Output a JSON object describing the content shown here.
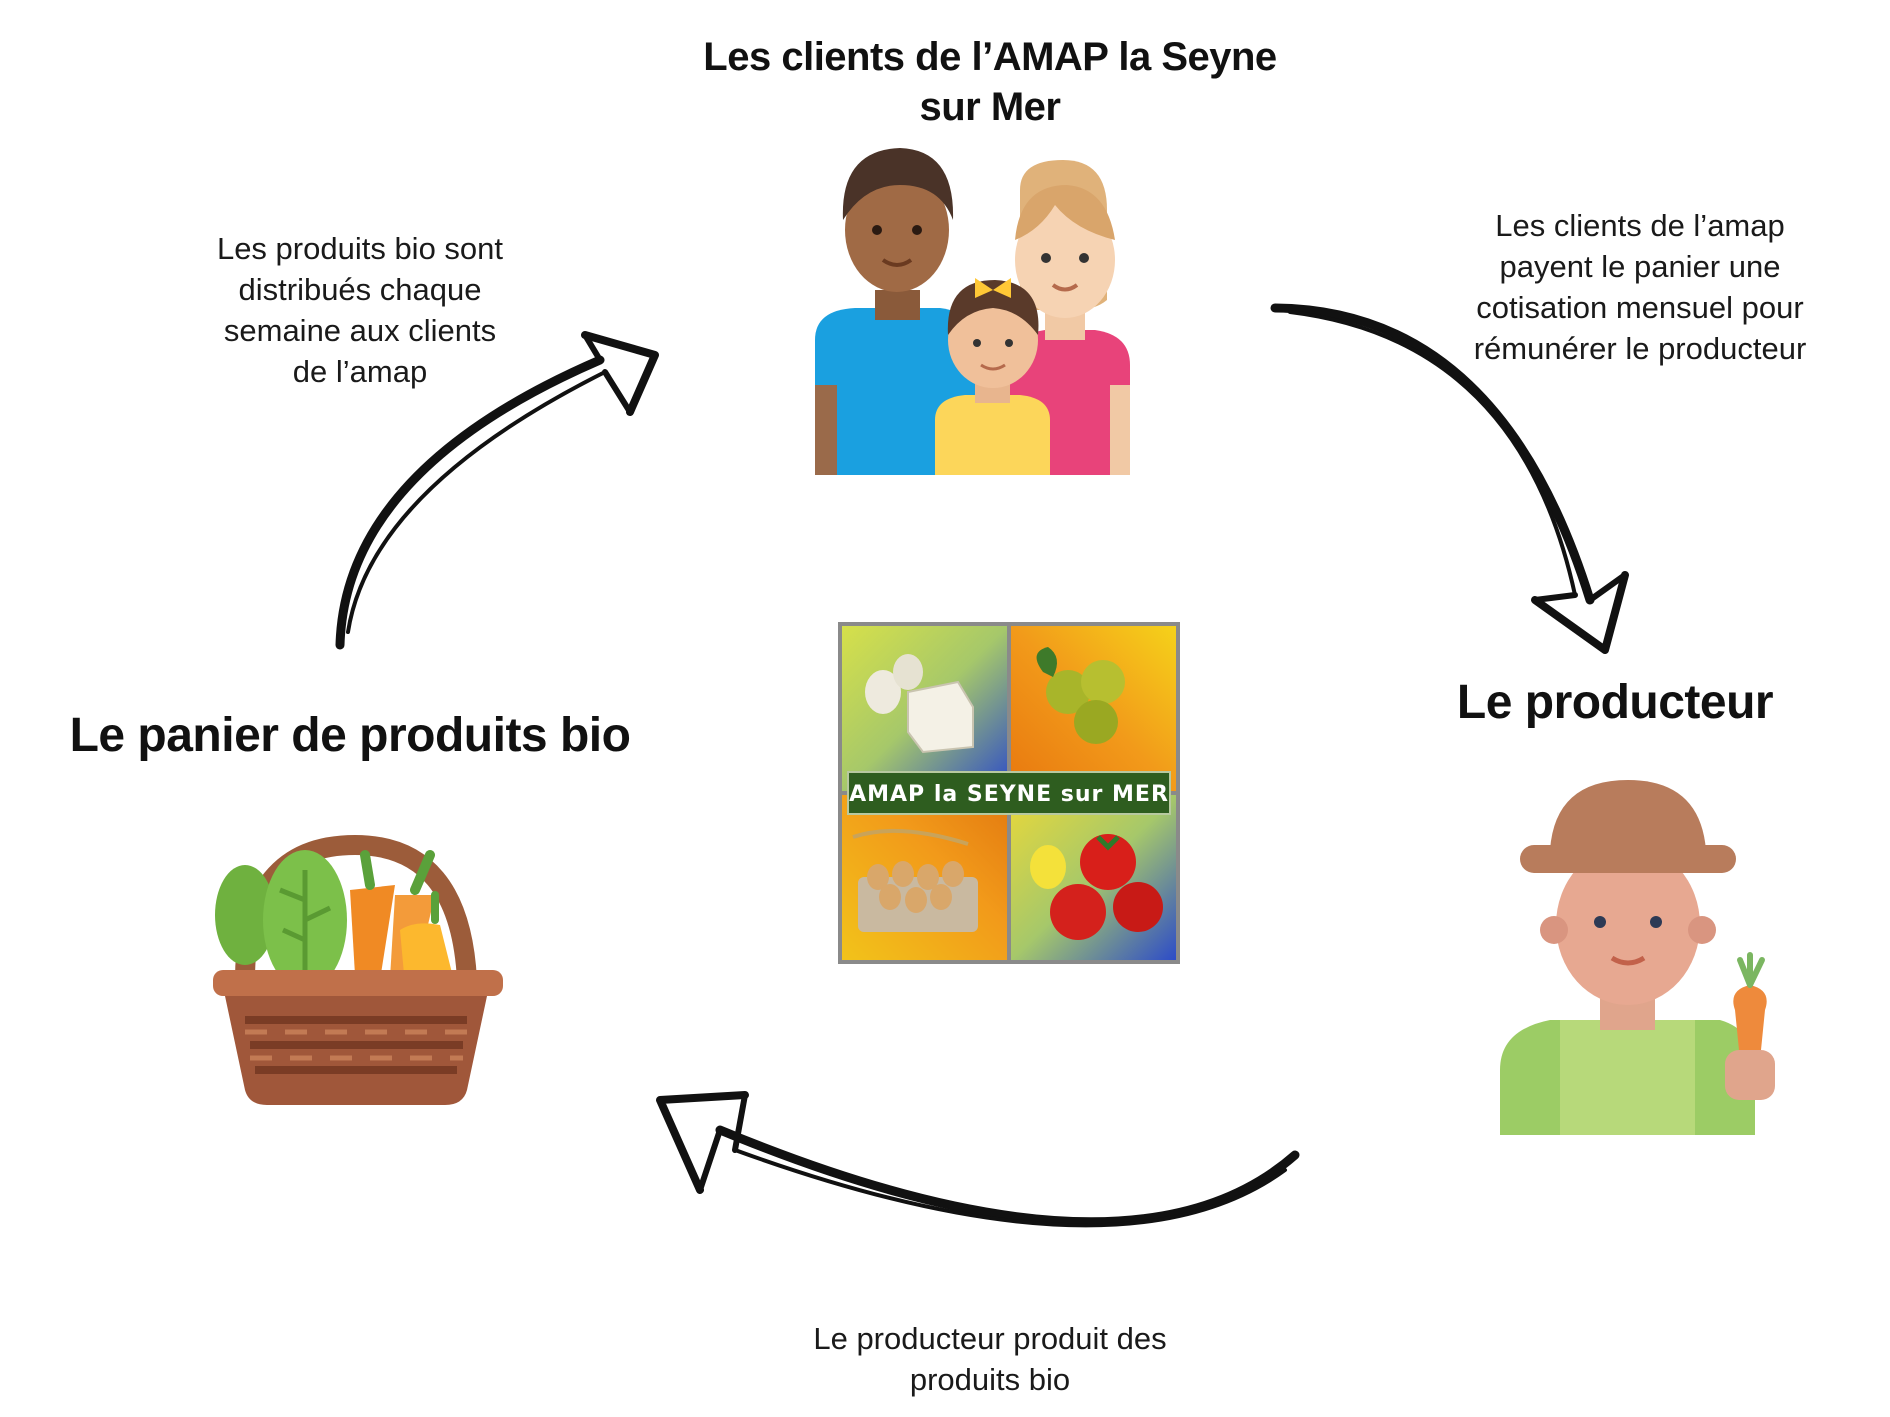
{
  "nodes": {
    "clients": {
      "title": "Les clients de l’AMAP la Seyne sur Mer",
      "icon": "family-icon"
    },
    "producer": {
      "title": "Le producteur",
      "icon": "farmer-icon"
    },
    "basket": {
      "title": "Le panier de produits bio",
      "icon": "vegetable-basket-icon"
    }
  },
  "captions": {
    "distribution": "Les produits bio sont distribués chaque semaine aux clients de l’amap",
    "payment": "Les clients de l’amap payent le panier une cotisation mensuel pour rémunérer le producteur",
    "production": "Le producteur produit des produits bio"
  },
  "logo": {
    "banner_text": "AMAP la SEYNE sur MER",
    "icon": "amap-logo-icon"
  },
  "colors": {
    "arrow": "#111111",
    "banner": "#2e5d1f"
  }
}
